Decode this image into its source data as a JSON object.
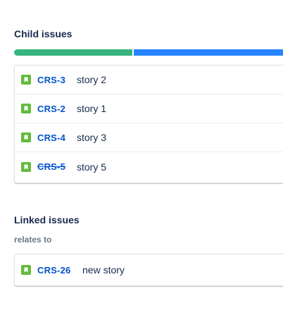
{
  "child_issues": {
    "title": "Child issues",
    "progress": {
      "done_fraction": 0.44,
      "in_progress_fraction": 0.56,
      "done_color": "#36b37e",
      "in_progress_color": "#2684ff"
    },
    "items": [
      {
        "key": "CRS-3",
        "summary": "story 2",
        "done": false,
        "icon": "story-icon"
      },
      {
        "key": "CRS-2",
        "summary": "story 1",
        "done": false,
        "icon": "story-icon"
      },
      {
        "key": "CRS-4",
        "summary": "story 3",
        "done": false,
        "icon": "story-icon"
      },
      {
        "key": "CRS-5",
        "summary": "story 5",
        "done": true,
        "icon": "story-icon"
      }
    ]
  },
  "linked_issues": {
    "title": "Linked issues",
    "relation": "relates to",
    "items": [
      {
        "key": "CRS-26",
        "summary": "new story",
        "icon": "story-icon"
      }
    ]
  }
}
